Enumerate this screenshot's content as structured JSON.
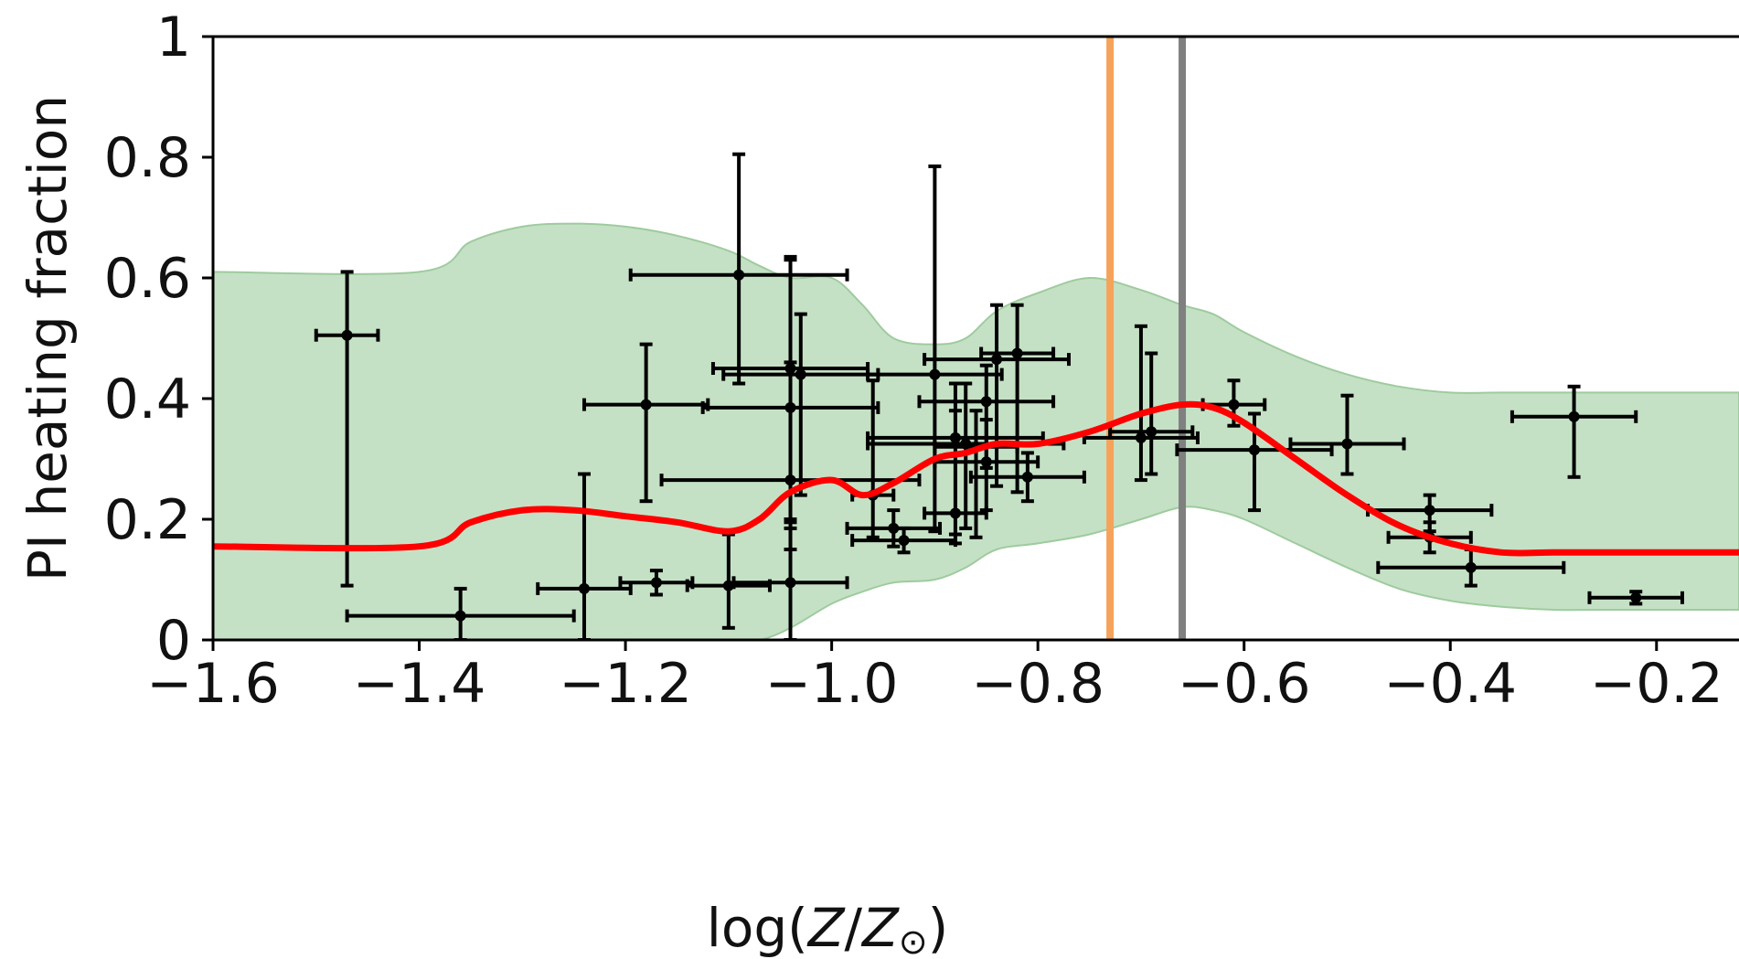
{
  "chart_data": {
    "type": "scatter",
    "title": "",
    "xlabel_parts": [
      "log(",
      "Z",
      "/",
      "Z",
      "⊙",
      ")"
    ],
    "ylabel": "PI heating fraction",
    "xlim": [
      -1.6,
      -0.12
    ],
    "ylim": [
      0,
      1
    ],
    "x_ticks": [
      -1.6,
      -1.4,
      -1.2,
      -1.0,
      -0.8,
      -0.6,
      -0.4,
      -0.2
    ],
    "x_tick_labels": [
      "−1.6",
      "−1.4",
      "−1.2",
      "−1.0",
      "−0.8",
      "−0.6",
      "−0.4",
      "−0.2"
    ],
    "y_ticks": [
      0,
      0.2,
      0.4,
      0.6,
      0.8,
      1
    ],
    "y_tick_labels": [
      "0",
      "0.2",
      "0.4",
      "0.6",
      "0.8",
      "1"
    ],
    "grid": false,
    "colors": {
      "model_line": "#ff0000",
      "band_fill": "#c5e1c5",
      "band_edge": "#9ecb9e",
      "points": "#000000",
      "vline_orange": "#f5a35a",
      "vline_gray": "#808080"
    },
    "vertical_lines": [
      {
        "x": -0.73,
        "color": "#f5a35a"
      },
      {
        "x": -0.66,
        "color": "#808080"
      }
    ],
    "model_line": {
      "x": [
        -1.6,
        -1.4,
        -1.35,
        -1.3,
        -1.25,
        -1.2,
        -1.15,
        -1.1,
        -1.07,
        -1.04,
        -1.0,
        -0.97,
        -0.94,
        -0.9,
        -0.87,
        -0.84,
        -0.8,
        -0.75,
        -0.7,
        -0.66,
        -0.63,
        -0.6,
        -0.55,
        -0.5,
        -0.45,
        -0.4,
        -0.35,
        -0.3,
        -0.25,
        -0.12
      ],
      "y": [
        0.155,
        0.155,
        0.195,
        0.215,
        0.215,
        0.205,
        0.195,
        0.18,
        0.2,
        0.245,
        0.265,
        0.24,
        0.26,
        0.3,
        0.31,
        0.325,
        0.325,
        0.345,
        0.375,
        0.39,
        0.385,
        0.36,
        0.3,
        0.24,
        0.19,
        0.16,
        0.145,
        0.145,
        0.145,
        0.145
      ]
    },
    "uncertainty_band": {
      "x": [
        -1.6,
        -1.4,
        -1.35,
        -1.3,
        -1.25,
        -1.2,
        -1.15,
        -1.1,
        -1.07,
        -1.04,
        -1.0,
        -0.97,
        -0.94,
        -0.9,
        -0.87,
        -0.84,
        -0.8,
        -0.75,
        -0.7,
        -0.66,
        -0.63,
        -0.6,
        -0.55,
        -0.5,
        -0.45,
        -0.4,
        -0.35,
        -0.3,
        -0.25,
        -0.12
      ],
      "upper": [
        0.61,
        0.61,
        0.66,
        0.685,
        0.69,
        0.685,
        0.67,
        0.645,
        0.62,
        0.6,
        0.6,
        0.555,
        0.5,
        0.49,
        0.5,
        0.545,
        0.575,
        0.6,
        0.58,
        0.555,
        0.54,
        0.51,
        0.47,
        0.44,
        0.42,
        0.41,
        0.41,
        0.41,
        0.41,
        0.41
      ],
      "lower": [
        0,
        0,
        0,
        0,
        0,
        0,
        0,
        0,
        0.0,
        0.02,
        0.06,
        0.08,
        0.095,
        0.1,
        0.12,
        0.15,
        0.16,
        0.175,
        0.2,
        0.22,
        0.215,
        0.2,
        0.16,
        0.12,
        0.085,
        0.065,
        0.055,
        0.05,
        0.05,
        0.05
      ]
    },
    "points": [
      {
        "x": -1.47,
        "y": 0.505,
        "xerr": 0.03,
        "yerr_lo": 0.415,
        "yerr_hi": 0.105
      },
      {
        "x": -1.36,
        "y": 0.04,
        "xerr": 0.11,
        "yerr_lo": 0.04,
        "yerr_hi": 0.045
      },
      {
        "x": -1.24,
        "y": 0.085,
        "xerr": 0.045,
        "yerr_lo": 0.085,
        "yerr_hi": 0.19
      },
      {
        "x": -1.17,
        "y": 0.095,
        "xerr": 0.035,
        "yerr_lo": 0.02,
        "yerr_hi": 0.02
      },
      {
        "x": -1.18,
        "y": 0.39,
        "xerr": 0.06,
        "yerr_lo": 0.16,
        "yerr_hi": 0.1
      },
      {
        "x": -1.1,
        "y": 0.09,
        "xerr": 0.04,
        "yerr_lo": 0.07,
        "yerr_hi": 0.085
      },
      {
        "x": -1.09,
        "y": 0.605,
        "xerr": 0.105,
        "yerr_lo": 0.18,
        "yerr_hi": 0.2
      },
      {
        "x": -1.04,
        "y": 0.45,
        "xerr": 0.075,
        "yerr_lo": 0.25,
        "yerr_hi": 0.18
      },
      {
        "x": -1.04,
        "y": 0.385,
        "xerr": 0.085,
        "yerr_lo": 0.2,
        "yerr_hi": 0.25
      },
      {
        "x": -1.04,
        "y": 0.265,
        "xerr": 0.125,
        "yerr_lo": 0.115,
        "yerr_hi": 0.195
      },
      {
        "x": -1.04,
        "y": 0.095,
        "xerr": 0.055,
        "yerr_lo": 0.095,
        "yerr_hi": 0.1
      },
      {
        "x": -1.03,
        "y": 0.44,
        "xerr": 0.075,
        "yerr_lo": 0.2,
        "yerr_hi": 0.1
      },
      {
        "x": -0.96,
        "y": 0.24,
        "xerr": 0.02,
        "yerr_lo": 0.07,
        "yerr_hi": 0.19
      },
      {
        "x": -0.94,
        "y": 0.185,
        "xerr": 0.045,
        "yerr_lo": 0.03,
        "yerr_hi": 0.03
      },
      {
        "x": -0.93,
        "y": 0.165,
        "xerr": 0.05,
        "yerr_lo": 0.02,
        "yerr_hi": 0.02
      },
      {
        "x": -0.9,
        "y": 0.44,
        "xerr": 0.065,
        "yerr_lo": 0.26,
        "yerr_hi": 0.345
      },
      {
        "x": -0.88,
        "y": 0.335,
        "xerr": 0.085,
        "yerr_lo": 0.16,
        "yerr_hi": 0.09
      },
      {
        "x": -0.88,
        "y": 0.21,
        "xerr": 0.03,
        "yerr_lo": 0.05,
        "yerr_hi": 0.17
      },
      {
        "x": -0.87,
        "y": 0.325,
        "xerr": 0.095,
        "yerr_lo": 0.14,
        "yerr_hi": 0.1
      },
      {
        "x": -0.86,
        "y": 0.32,
        "xerr": 0.04,
        "yerr_lo": 0.15,
        "yerr_hi": 0.06
      },
      {
        "x": -0.85,
        "y": 0.395,
        "xerr": 0.065,
        "yerr_lo": 0.11,
        "yerr_hi": 0.06
      },
      {
        "x": -0.85,
        "y": 0.295,
        "xerr": 0.05,
        "yerr_lo": 0.08,
        "yerr_hi": 0.07
      },
      {
        "x": -0.84,
        "y": 0.465,
        "xerr": 0.07,
        "yerr_lo": 0.21,
        "yerr_hi": 0.09
      },
      {
        "x": -0.82,
        "y": 0.475,
        "xerr": 0.035,
        "yerr_lo": 0.23,
        "yerr_hi": 0.08
      },
      {
        "x": -0.81,
        "y": 0.27,
        "xerr": 0.055,
        "yerr_lo": 0.04,
        "yerr_hi": 0.04
      },
      {
        "x": -0.7,
        "y": 0.335,
        "xerr": 0.055,
        "yerr_lo": 0.07,
        "yerr_hi": 0.185
      },
      {
        "x": -0.69,
        "y": 0.345,
        "xerr": 0.04,
        "yerr_lo": 0.07,
        "yerr_hi": 0.13
      },
      {
        "x": -0.61,
        "y": 0.39,
        "xerr": 0.03,
        "yerr_lo": 0.035,
        "yerr_hi": 0.04
      },
      {
        "x": -0.59,
        "y": 0.315,
        "xerr": 0.075,
        "yerr_lo": 0.1,
        "yerr_hi": 0.06
      },
      {
        "x": -0.5,
        "y": 0.325,
        "xerr": 0.055,
        "yerr_lo": 0.05,
        "yerr_hi": 0.08
      },
      {
        "x": -0.42,
        "y": 0.215,
        "xerr": 0.06,
        "yerr_lo": 0.035,
        "yerr_hi": 0.025
      },
      {
        "x": -0.42,
        "y": 0.17,
        "xerr": 0.04,
        "yerr_lo": 0.025,
        "yerr_hi": 0.025
      },
      {
        "x": -0.38,
        "y": 0.12,
        "xerr": 0.09,
        "yerr_lo": 0.03,
        "yerr_hi": 0.03
      },
      {
        "x": -0.28,
        "y": 0.37,
        "xerr": 0.06,
        "yerr_lo": 0.1,
        "yerr_hi": 0.05
      },
      {
        "x": -0.22,
        "y": 0.07,
        "xerr": 0.045,
        "yerr_lo": 0.01,
        "yerr_hi": 0.01
      }
    ]
  }
}
